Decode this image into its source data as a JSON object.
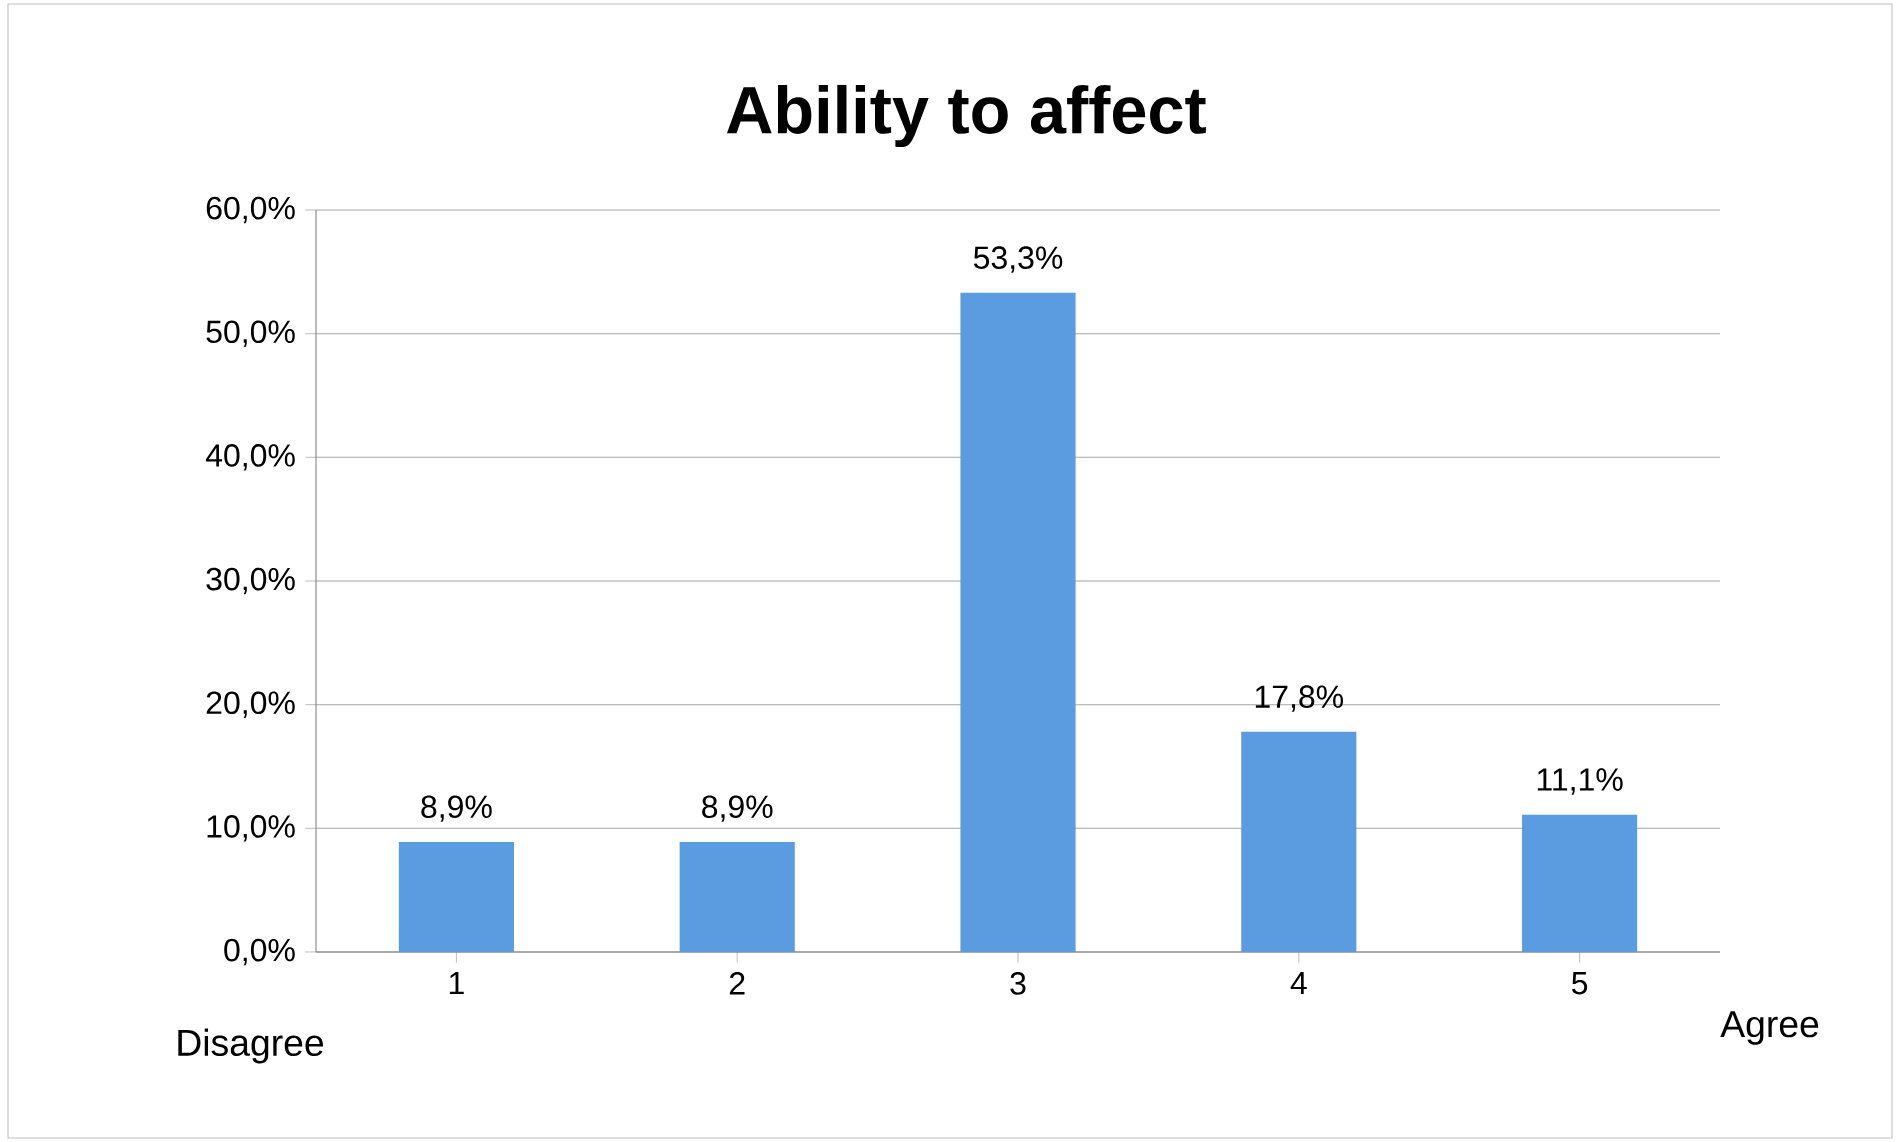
{
  "chart_data": {
    "type": "bar",
    "title": "Ability to affect",
    "categories": [
      "1",
      "2",
      "3",
      "4",
      "5"
    ],
    "values": [
      8.9,
      8.9,
      53.3,
      17.8,
      11.1
    ],
    "value_labels": [
      "8,9%",
      "8,9%",
      "53,3%",
      "17,8%",
      "11,1%"
    ],
    "color": "#5b9be0",
    "ylim": [
      0,
      60
    ],
    "yticks": [
      {
        "value": 0,
        "label": "0,0%"
      },
      {
        "value": 10,
        "label": "10,0%"
      },
      {
        "value": 20,
        "label": "20,0%"
      },
      {
        "value": 30,
        "label": "30,0%"
      },
      {
        "value": 40,
        "label": "40,0%"
      },
      {
        "value": 50,
        "label": "50,0%"
      },
      {
        "value": 60,
        "label": "60,0%"
      }
    ],
    "grid": "y",
    "annotations": [
      "Disagree",
      "Agree"
    ]
  }
}
